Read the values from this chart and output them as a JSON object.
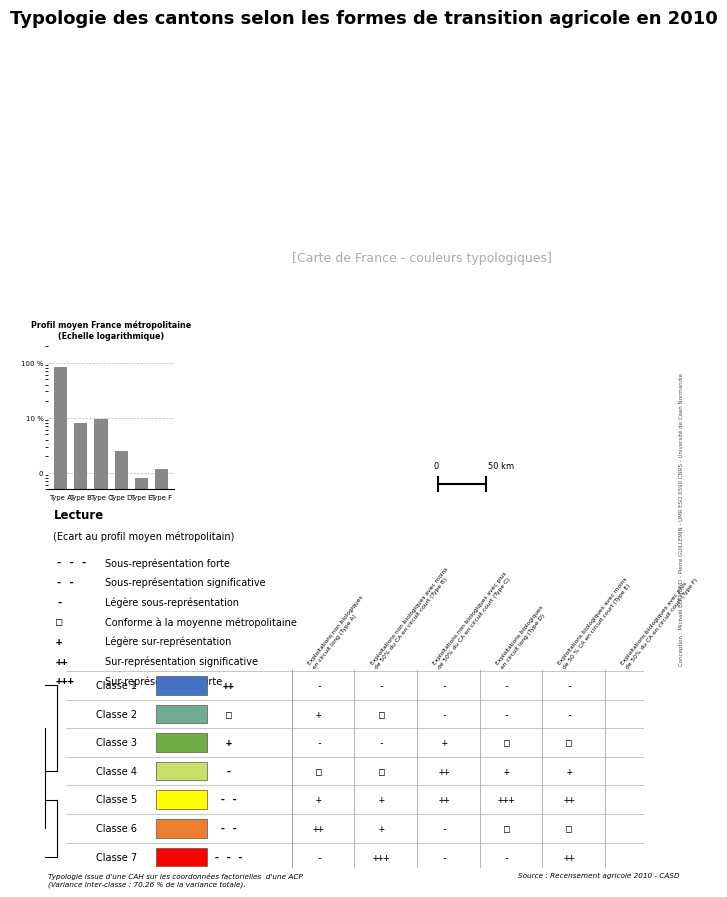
{
  "title": "Typologie des cantons selon les formes de transition agricole en 2010",
  "title_fontsize": 13,
  "background_color": "#ffffff",
  "bar_chart": {
    "title": "Profil moyen France métropolitaine",
    "subtitle": "(Echelle logarithmique)",
    "categories": [
      "Type A",
      "Type B",
      "Type C",
      "Type D",
      "Type E",
      "Type F"
    ],
    "values": [
      85,
      8,
      9.5,
      2.5,
      0.8,
      1.2
    ],
    "bar_color": "#888888"
  },
  "lecture_title": "Lecture",
  "lecture_subtitle": "(Ecart au profil moyen métropolitain)",
  "lecture_items": [
    {
      "symbol": "- - -",
      "label": "Sous-représentation forte"
    },
    {
      "symbol": "- -",
      "label": "Sous-représentation significative"
    },
    {
      "symbol": "-",
      "label": "Légère sous-représentation"
    },
    {
      "symbol": "□",
      "label": "Conforme à la moyenne métropolitaine"
    },
    {
      "symbol": "+",
      "label": "Légère sur-représentation"
    },
    {
      "symbol": "++",
      "label": "Sur-représentation significative"
    },
    {
      "symbol": "+++",
      "label": "Sur-représentation forte"
    }
  ],
  "col_headers": [
    "Exploitations non biologiques\nen circuit long (Type A)",
    "Exploitations non biologiques avec moins\nde 50% du CA en circuit court (Type B)",
    "Exploitations non biologiques avec plus\nde 50% du CA en circuit court (Type C)",
    "Exploitations biologiques\nen circuit long (Type D)",
    "Exploitations biologiques avec moins\nde 50 % CA en circuit court (Type E)",
    "Exploitations biologiques avec plus\nde 50% du CA en circuit court (Type F)"
  ],
  "classes": [
    {
      "name": "Classe 1",
      "color": "#4472C4",
      "type_symbol": "++",
      "values": [
        "-",
        "-",
        "-",
        "-",
        "-"
      ]
    },
    {
      "name": "Classe 2",
      "color": "#70AD8F",
      "type_symbol": "□",
      "values": [
        "+",
        "□",
        "-",
        "-",
        "-"
      ]
    },
    {
      "name": "Classe 3",
      "color": "#70AD47",
      "type_symbol": "+",
      "values": [
        "-",
        "-",
        "+",
        "□",
        "□"
      ]
    },
    {
      "name": "Classe 4",
      "color": "#C9E06A",
      "type_symbol": "-",
      "values": [
        "□",
        "□",
        "++",
        "+",
        "+"
      ]
    },
    {
      "name": "Classe 5",
      "color": "#FFFF00",
      "type_symbol": "- -",
      "values": [
        "+",
        "+",
        "++",
        "+++",
        "++"
      ]
    },
    {
      "name": "Classe 6",
      "color": "#ED7D31",
      "type_symbol": "- -",
      "values": [
        "++",
        "+",
        "-",
        "□",
        "□"
      ]
    },
    {
      "name": "Classe 7",
      "color": "#FF0000",
      "type_symbol": "- - -",
      "values": [
        "-",
        "+++",
        "-",
        "-",
        "++"
      ]
    }
  ],
  "footnote": "Typologie issue d'une CAH sur les coordonnées factorielles  d'une ACP\n(Variance inter-classe : 70.26 % de la variance totale).",
  "source": "Source : Recensement agricole 2010 - CASD",
  "conception": "Conception : Michaël BERMOND - Pierre GUILLEMIN - UMR ESO 6590 CNRS - Université de Caen Normandie"
}
